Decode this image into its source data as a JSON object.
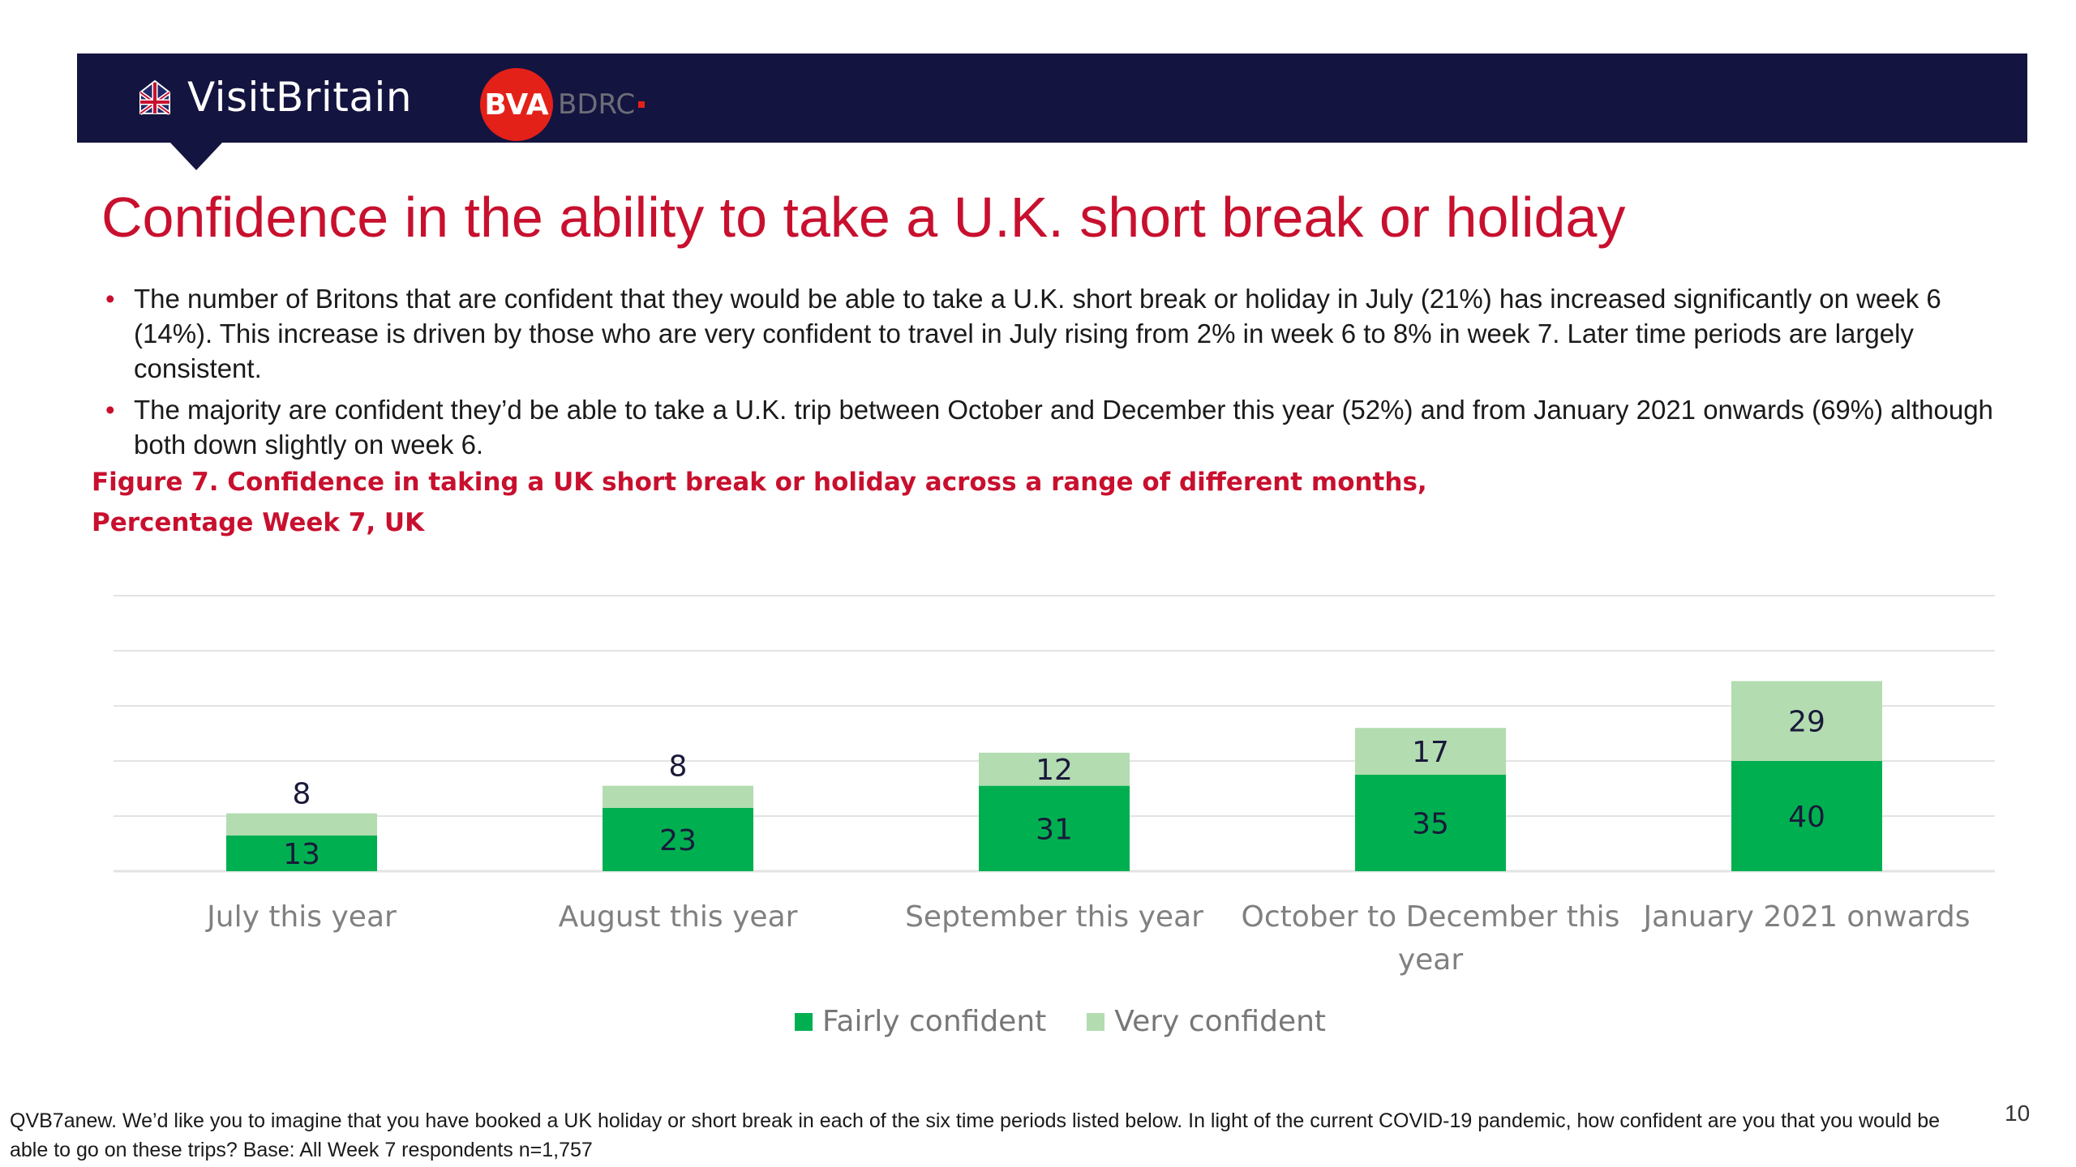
{
  "header": {
    "brand": "VisitBritain",
    "partner_logo": "BVA",
    "partner_suffix": "BDRC"
  },
  "title": "Confidence in the ability to take a U.K. short break or holiday",
  "bullets": [
    "The number of Britons that are confident that they would be able to take a U.K. short break or holiday in July (21%) has increased significantly on week 6 (14%). This increase is driven by those who are very confident to travel in July rising from 2% in week 6 to 8% in week 7. Later time periods are largely consistent.",
    "The majority are confident they’d be able to take a U.K. trip between October and December this year (52%) and from January 2021 onwards (69%) although both down slightly on week 6."
  ],
  "figure_caption": {
    "line1": "Figure 7. Confidence in taking a UK short break or holiday across a range of different months,",
    "line2": "Percentage Week 7, UK"
  },
  "chart_data": {
    "type": "bar",
    "stacked": true,
    "categories": [
      [
        "July this year"
      ],
      [
        "August this year"
      ],
      [
        "September this year"
      ],
      [
        "October to December this",
        "year"
      ],
      [
        "January 2021 onwards"
      ]
    ],
    "series": [
      {
        "name": "Fairly confident",
        "color": "#00b050",
        "values": [
          13,
          23,
          31,
          35,
          40
        ]
      },
      {
        "name": "Very confident",
        "color": "#b3dcb1",
        "values": [
          8,
          8,
          12,
          17,
          29
        ]
      }
    ],
    "ylim": [
      0,
      100
    ],
    "grid": true,
    "legend_position": "bottom"
  },
  "footnote": "QVB7anew.  We’d like you to imagine that you have booked a UK holiday or short break in each of the six time periods listed below.  In light of the current COVID-19 pandemic, how confident are you that you would be able to go on these trips? Base: All Week 7 respondents n=1,757",
  "page_number": "10",
  "icons": {
    "flag": "union-jack-icon"
  }
}
